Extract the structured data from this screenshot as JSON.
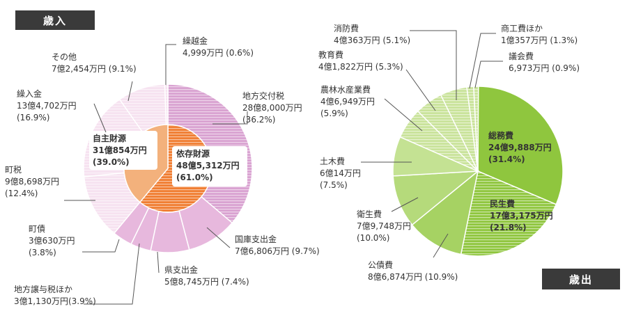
{
  "headers": {
    "revenue": "歳入",
    "expenditure": "歳出"
  },
  "colors": {
    "revenue_outer": "#d9a2d1",
    "revenue_outer_light": "#f6e2f0",
    "revenue_inner_dependent": "#f07d31",
    "revenue_inner_own": "#f3b17c",
    "expenditure_main": "#8fc63e",
    "expenditure_light": "#c9e39a",
    "leader_line": "#555555"
  },
  "chart_data": [
    {
      "type": "pie",
      "variant": "donut-outer",
      "title": "歳入",
      "slices": [
        {
          "name": "地方交付税",
          "amount": "28億8,000万円",
          "percent_label": "(36.2%)",
          "value": 36.2,
          "label_lines": [
            "地方交付税",
            "28億8,000万円",
            "(36.2%)"
          ]
        },
        {
          "name": "国庫支出金",
          "amount": "7億6,806万円",
          "percent_label": "(9.7%)",
          "value": 9.7,
          "label_lines": [
            "国庫支出金",
            "7億6,806万円 (9.7%)"
          ]
        },
        {
          "name": "県支出金",
          "amount": "5億8,745万円",
          "percent_label": "(7.4%)",
          "value": 7.4,
          "label_lines": [
            "県支出金",
            "5億8,745万円 (7.4%)"
          ]
        },
        {
          "name": "地方譲与税ほか",
          "amount": "3億1,130万円",
          "percent_label": "(3.9%)",
          "value": 3.9,
          "label_lines": [
            "地方譲与税ほか",
            "3億1,130万円(3.9%)"
          ]
        },
        {
          "name": "町債",
          "amount": "3億630万円",
          "percent_label": "(3.8%)",
          "value": 3.8,
          "label_lines": [
            "町債",
            "3億630万円",
            "(3.8%)"
          ]
        },
        {
          "name": "町税",
          "amount": "9億8,698万円",
          "percent_label": "(12.4%)",
          "value": 12.4,
          "label_lines": [
            "町税",
            "9億8,698万円",
            "(12.4%)"
          ]
        },
        {
          "name": "繰入金",
          "amount": "13億4,702万円",
          "percent_label": "(16.9%)",
          "value": 16.9,
          "label_lines": [
            "繰入金",
            "13億4,702万円",
            "(16.9%)"
          ]
        },
        {
          "name": "その他",
          "amount": "7億2,454万円",
          "percent_label": "(9.1%)",
          "value": 9.1,
          "label_lines": [
            "その他",
            "7億2,454万円 (9.1%)"
          ]
        },
        {
          "name": "繰越金",
          "amount": "4,999万円",
          "percent_label": "(0.6%)",
          "value": 0.6,
          "label_lines": [
            "繰越金",
            "4,999万円 (0.6%)"
          ]
        }
      ],
      "inner_ring": [
        {
          "name": "依存財源",
          "amount": "48億5,312万円",
          "percent_label": "(61.0%)",
          "value": 61.0,
          "label_lines": [
            "依存財源",
            "48億5,312万円",
            "(61.0%)"
          ]
        },
        {
          "name": "自主財源",
          "amount": "31億854万円",
          "percent_label": "(39.0%)",
          "value": 39.0,
          "label_lines": [
            "自主財源",
            "31億854万円",
            "(39.0%)"
          ]
        }
      ]
    },
    {
      "type": "pie",
      "title": "歳出",
      "slices": [
        {
          "name": "総務費",
          "amount": "24億9,888万円",
          "percent_label": "(31.4%)",
          "value": 31.4,
          "label_lines": [
            "総務費",
            "24億9,888万円",
            "(31.4%)"
          ]
        },
        {
          "name": "民生費",
          "amount": "17億3,175万円",
          "percent_label": "(21.8%)",
          "value": 21.8,
          "label_lines": [
            "民生費",
            "17億3,175万円",
            "(21.8%)"
          ]
        },
        {
          "name": "公債費",
          "amount": "8億6,874万円",
          "percent_label": "(10.9%)",
          "value": 10.9,
          "label_lines": [
            "公債費",
            "8億6,874万円 (10.9%)"
          ]
        },
        {
          "name": "衛生費",
          "amount": "7億9,748万円",
          "percent_label": "(10.0%)",
          "value": 10.0,
          "label_lines": [
            "衛生費",
            "7億9,748万円",
            "(10.0%)"
          ]
        },
        {
          "name": "土木費",
          "amount": "6億14万円",
          "percent_label": "(7.5%)",
          "value": 7.5,
          "label_lines": [
            "土木費",
            "6億14万円",
            "(7.5%)"
          ]
        },
        {
          "name": "農林水産業費",
          "amount": "4億6,949万円",
          "percent_label": "(5.9%)",
          "value": 5.9,
          "label_lines": [
            "農林水産業費",
            "4億6,949万円",
            "(5.9%)"
          ]
        },
        {
          "name": "教育費",
          "amount": "4億1,822万円",
          "percent_label": "(5.3%)",
          "value": 5.3,
          "label_lines": [
            "教育費",
            "4億1,822万円 (5.3%)"
          ]
        },
        {
          "name": "消防費",
          "amount": "4億363万円",
          "percent_label": "(5.1%)",
          "value": 5.1,
          "label_lines": [
            "消防費",
            "4億363万円 (5.1%)"
          ]
        },
        {
          "name": "商工費ほか",
          "amount": "1億357万円",
          "percent_label": "(1.3%)",
          "value": 1.3,
          "label_lines": [
            "商工費ほか",
            "1億357万円 (1.3%)"
          ]
        },
        {
          "name": "議会費",
          "amount": "6,973万円",
          "percent_label": "(0.9%)",
          "value": 0.9,
          "label_lines": [
            "議会費",
            "6,973万円 (0.9%)"
          ]
        }
      ]
    }
  ]
}
